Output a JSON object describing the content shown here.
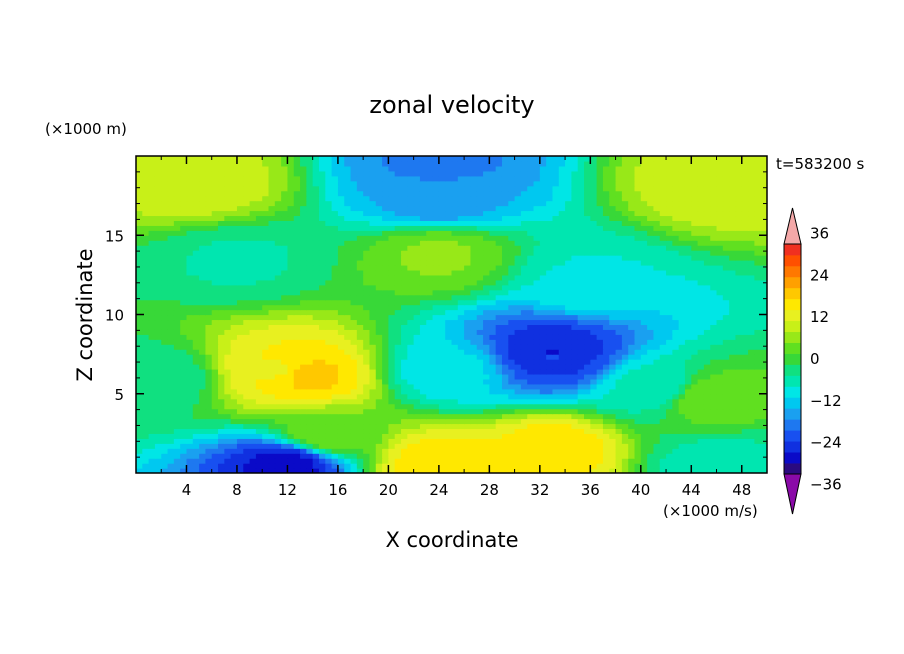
{
  "chart_data": {
    "type": "heatmap",
    "title": "zonal velocity",
    "xlabel": "X coordinate",
    "ylabel": "Z coordinate",
    "x_unit": "(×1000 m/s)",
    "y_unit": "(×1000 m)",
    "time_label": "t=583200 s",
    "xlim": [
      0,
      50
    ],
    "ylim": [
      0,
      20
    ],
    "x_ticks": [
      4,
      8,
      12,
      16,
      20,
      24,
      28,
      32,
      36,
      40,
      44,
      48
    ],
    "y_ticks": [
      5,
      10,
      15
    ],
    "colorbar": {
      "levels": [
        -42,
        -39,
        -36,
        -33,
        -30,
        -27,
        -24,
        -21,
        -18,
        -15,
        -12,
        -9,
        -6,
        -3,
        0,
        3,
        6,
        9,
        12,
        15,
        18,
        21,
        24,
        27,
        30,
        33,
        36,
        39,
        42
      ],
      "colors": [
        "#7a0aa0",
        "#2a0a80",
        "#0a0ac8",
        "#1030e0",
        "#1850f0",
        "#1e78f0",
        "#1aa0f0",
        "#00c8f0",
        "#00e6e6",
        "#00e6b0",
        "#10e080",
        "#38d838",
        "#60e020",
        "#98e818",
        "#c8f018",
        "#e8f020",
        "#ffe800",
        "#ffc800",
        "#ffa000",
        "#ff7800",
        "#ff5000",
        "#f03020",
        "#e01020"
      ],
      "labeled_ticks": [
        36,
        24,
        12,
        0,
        -12,
        -24,
        -36
      ],
      "tick_labels": [
        "36",
        "24",
        "12",
        "0",
        "−12",
        "−24",
        "−36"
      ],
      "over_color": "#f4a8a8",
      "under_color": "#8a0aa8"
    },
    "field_features": [
      {
        "x": 11,
        "z": 6.5,
        "u": 14
      },
      {
        "x": 13.5,
        "z": 6.2,
        "u": 18
      },
      {
        "x": 33,
        "z": 7.5,
        "u": -22
      },
      {
        "x": 33,
        "z": 7.6,
        "u": -28
      },
      {
        "x": 12,
        "z": 0.6,
        "u": -28
      },
      {
        "x": 24,
        "z": 0.6,
        "u": 16
      },
      {
        "x": 33,
        "z": 1.6,
        "u": 16
      },
      {
        "x": 24,
        "z": 19.6,
        "u": -18
      },
      {
        "x": 24,
        "z": 17.3,
        "u": -16
      },
      {
        "x": 5,
        "z": 18.2,
        "u": 10
      },
      {
        "x": 46,
        "z": 18.2,
        "u": 10
      },
      {
        "x": 24,
        "z": 13.8,
        "u": 5
      },
      {
        "x": 36,
        "z": 12.0,
        "u": -8
      },
      {
        "x": 25,
        "z": 6.5,
        "u": -10
      },
      {
        "x": 41,
        "z": 5.5,
        "u": -7
      },
      {
        "x": 45.5,
        "z": 4.8,
        "u": 4
      },
      {
        "x": 2,
        "z": 6,
        "u": -4
      },
      {
        "x": 46,
        "z": 0.5,
        "u": -6
      },
      {
        "x": 8,
        "z": 13.5,
        "u": -5
      },
      {
        "x": 15,
        "z": 2.5,
        "u": 4
      }
    ]
  }
}
